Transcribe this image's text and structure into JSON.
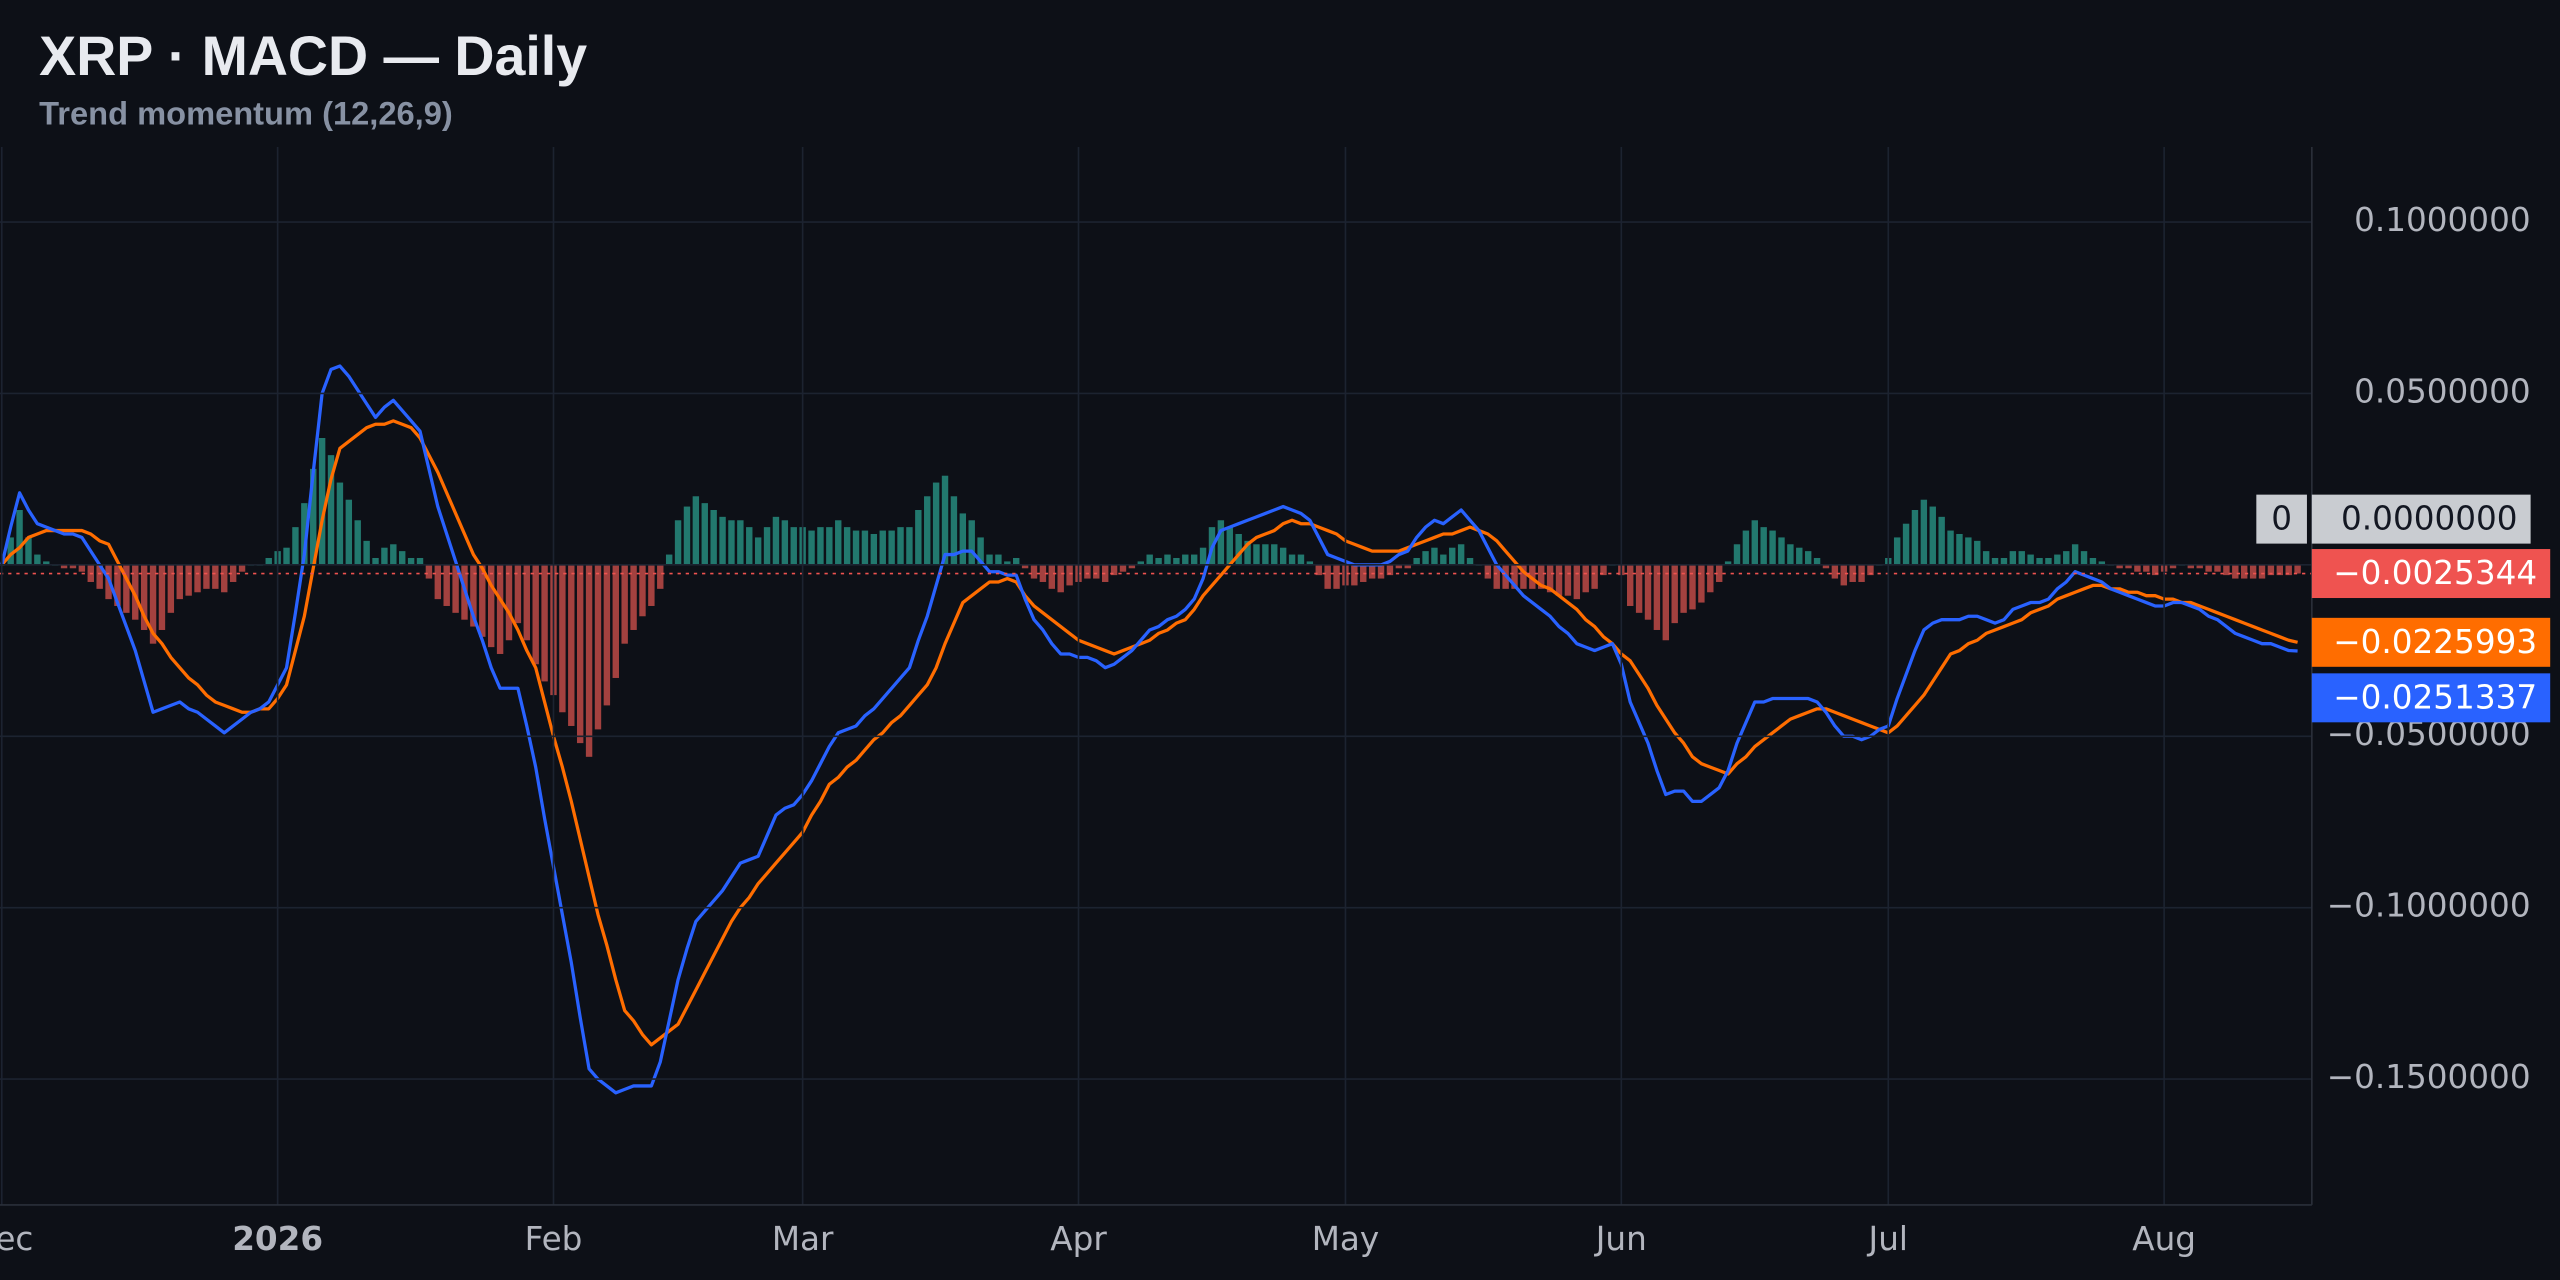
{
  "chart_data": {
    "type": "line",
    "title": "XRP · MACD — Daily",
    "subtitle": "Trend momentum (12,26,9)",
    "xlim": [
      -0.2,
      259.6
    ],
    "xticks": [
      {
        "value": 0,
        "label": "Dec"
      },
      {
        "value": 31,
        "label": "2026"
      },
      {
        "value": 62,
        "label": "Feb"
      },
      {
        "value": 90,
        "label": "Mar"
      },
      {
        "value": 121,
        "label": "Apr"
      },
      {
        "value": 151,
        "label": "May"
      },
      {
        "value": 182,
        "label": "Jun"
      },
      {
        "value": 212,
        "label": "Jul"
      },
      {
        "value": 243,
        "label": "Aug"
      }
    ],
    "ylim": [
      -0.1867,
      0.1219
    ],
    "yticks": [
      {
        "value": 0.1,
        "label": "0.1000000"
      },
      {
        "value": 0.05,
        "label": "0.0500000"
      },
      {
        "value": 0,
        "label": "0.0000000"
      },
      {
        "value": -0.05,
        "label": "−0.0500000"
      },
      {
        "value": -0.1,
        "label": "−0.1000000"
      },
      {
        "value": -0.15,
        "label": "−0.1500000"
      }
    ],
    "grid": true,
    "hlines": [
      {
        "value": 0,
        "label": "0"
      }
    ],
    "series": [
      {
        "type": "histogram",
        "positive_color": "#22786e",
        "negative_color": "#a3413f",
        "label_color": "#ef5350",
        "last_value_label": "−0.0025344",
        "values": [
          0,
          0.008,
          0.016,
          0.008,
          0.003,
          0.001,
          0,
          -0.001,
          -0.001,
          -0.002,
          -0.005,
          -0.007,
          -0.01,
          -0.012,
          -0.014,
          -0.016,
          -0.019,
          -0.023,
          -0.019,
          -0.014,
          -0.01,
          -0.009,
          -0.008,
          -0.007,
          -0.007,
          -0.008,
          -0.005,
          -0.002,
          0,
          0,
          0.002,
          0.004,
          0.005,
          0.011,
          0.018,
          0.028,
          0.037,
          0.032,
          0.024,
          0.019,
          0.013,
          0.007,
          0.002,
          0.005,
          0.006,
          0.004,
          0.002,
          0.002,
          -0.004,
          -0.01,
          -0.012,
          -0.014,
          -0.016,
          -0.018,
          -0.021,
          -0.024,
          -0.026,
          -0.022,
          -0.017,
          -0.022,
          -0.029,
          -0.034,
          -0.038,
          -0.043,
          -0.047,
          -0.052,
          -0.056,
          -0.048,
          -0.041,
          -0.033,
          -0.023,
          -0.019,
          -0.015,
          -0.012,
          -0.007,
          0.003,
          0.013,
          0.017,
          0.02,
          0.018,
          0.016,
          0.014,
          0.013,
          0.013,
          0.011,
          0.008,
          0.011,
          0.014,
          0.013,
          0.011,
          0.011,
          0.01,
          0.011,
          0.011,
          0.013,
          0.011,
          0.01,
          0.01,
          0.009,
          0.01,
          0.01,
          0.011,
          0.011,
          0.016,
          0.02,
          0.024,
          0.026,
          0.02,
          0.015,
          0.013,
          0.008,
          0.003,
          0.003,
          0.001,
          0.002,
          -0.001,
          -0.004,
          -0.005,
          -0.007,
          -0.008,
          -0.006,
          -0.005,
          -0.004,
          -0.004,
          -0.005,
          -0.003,
          -0.002,
          -0.001,
          0.001,
          0.003,
          0.002,
          0.003,
          0.002,
          0.003,
          0.003,
          0.005,
          0.011,
          0.013,
          0.011,
          0.009,
          0.007,
          0.006,
          0.006,
          0.006,
          0.005,
          0.003,
          0.003,
          0.001,
          -0.003,
          -0.007,
          -0.007,
          -0.006,
          -0.006,
          -0.005,
          -0.004,
          -0.004,
          -0.003,
          -0.001,
          -0.001,
          0.002,
          0.004,
          0.005,
          0.003,
          0.005,
          0.006,
          0.002,
          0,
          -0.004,
          -0.007,
          -0.007,
          -0.007,
          -0.007,
          -0.007,
          -0.007,
          -0.008,
          -0.009,
          -0.009,
          -0.01,
          -0.008,
          -0.007,
          -0.003,
          0,
          -0.003,
          -0.012,
          -0.014,
          -0.016,
          -0.019,
          -0.022,
          -0.017,
          -0.014,
          -0.013,
          -0.011,
          -0.008,
          -0.005,
          0.001,
          0.006,
          0.01,
          0.013,
          0.011,
          0.01,
          0.008,
          0.006,
          0.005,
          0.004,
          0.002,
          -0.001,
          -0.004,
          -0.006,
          -0.005,
          -0.005,
          -0.003,
          0,
          0.002,
          0.008,
          0.012,
          0.016,
          0.019,
          0.017,
          0.014,
          0.01,
          0.009,
          0.008,
          0.007,
          0.004,
          0.002,
          0.002,
          0.004,
          0.004,
          0.003,
          0.002,
          0.002,
          0.003,
          0.004,
          0.006,
          0.004,
          0.002,
          0.001,
          0,
          -0.001,
          -0.001,
          -0.002,
          -0.002,
          -0.003,
          -0.002,
          -0.001,
          0,
          -0.001,
          -0.001,
          -0.002,
          -0.002,
          -0.003,
          -0.004,
          -0.004,
          -0.004,
          -0.004,
          -0.003,
          -0.003,
          -0.003,
          -0.0025344
        ]
      },
      {
        "type": "line",
        "color": "#ff6d00",
        "last_value_label": "−0.0225993",
        "values": [
          0,
          0.003,
          0.005,
          0.008,
          0.009,
          0.01,
          0.01,
          0.01,
          0.01,
          0.01,
          0.009,
          0.007,
          0.006,
          0.001,
          -0.004,
          -0.009,
          -0.015,
          -0.02,
          -0.023,
          -0.027,
          -0.03,
          -0.033,
          -0.035,
          -0.038,
          -0.04,
          -0.041,
          -0.042,
          -0.043,
          -0.043,
          -0.042,
          -0.042,
          -0.039,
          -0.035,
          -0.025,
          -0.015,
          -0.001,
          0.013,
          0.025,
          0.034,
          0.036,
          0.038,
          0.04,
          0.041,
          0.041,
          0.042,
          0.041,
          0.04,
          0.037,
          0.032,
          0.027,
          0.021,
          0.015,
          0.009,
          0.003,
          -0.001,
          -0.006,
          -0.01,
          -0.014,
          -0.019,
          -0.025,
          -0.03,
          -0.04,
          -0.05,
          -0.059,
          -0.069,
          -0.08,
          -0.091,
          -0.102,
          -0.111,
          -0.121,
          -0.13,
          -0.133,
          -0.137,
          -0.14,
          -0.138,
          -0.136,
          -0.134,
          -0.129,
          -0.124,
          -0.119,
          -0.114,
          -0.109,
          -0.104,
          -0.1,
          -0.097,
          -0.093,
          -0.09,
          -0.087,
          -0.084,
          -0.081,
          -0.078,
          -0.073,
          -0.069,
          -0.064,
          -0.062,
          -0.059,
          -0.057,
          -0.054,
          -0.051,
          -0.049,
          -0.046,
          -0.044,
          -0.041,
          -0.038,
          -0.035,
          -0.03,
          -0.023,
          -0.017,
          -0.011,
          -0.009,
          -0.007,
          -0.005,
          -0.005,
          -0.004,
          -0.005,
          -0.009,
          -0.012,
          -0.014,
          -0.016,
          -0.018,
          -0.02,
          -0.022,
          -0.023,
          -0.024,
          -0.025,
          -0.026,
          -0.025,
          -0.024,
          -0.023,
          -0.022,
          -0.02,
          -0.019,
          -0.017,
          -0.016,
          -0.013,
          -0.009,
          -0.006,
          -0.003,
          0,
          0.003,
          0.006,
          0.008,
          0.009,
          0.01,
          0.012,
          0.013,
          0.012,
          0.012,
          0.011,
          0.01,
          0.009,
          0.007,
          0.006,
          0.005,
          0.004,
          0.004,
          0.004,
          0.004,
          0.005,
          0.006,
          0.007,
          0.008,
          0.009,
          0.009,
          0.01,
          0.011,
          0.01,
          0.009,
          0.007,
          0.004,
          0.001,
          -0.002,
          -0.004,
          -0.006,
          -0.007,
          -0.009,
          -0.011,
          -0.013,
          -0.016,
          -0.018,
          -0.021,
          -0.023,
          -0.026,
          -0.028,
          -0.032,
          -0.036,
          -0.041,
          -0.045,
          -0.049,
          -0.052,
          -0.056,
          -0.058,
          -0.059,
          -0.06,
          -0.061,
          -0.058,
          -0.056,
          -0.053,
          -0.051,
          -0.049,
          -0.047,
          -0.045,
          -0.044,
          -0.043,
          -0.042,
          -0.042,
          -0.043,
          -0.044,
          -0.045,
          -0.046,
          -0.047,
          -0.048,
          -0.049,
          -0.047,
          -0.044,
          -0.041,
          -0.038,
          -0.034,
          -0.03,
          -0.026,
          -0.025,
          -0.023,
          -0.022,
          -0.02,
          -0.019,
          -0.018,
          -0.017,
          -0.016,
          -0.014,
          -0.013,
          -0.012,
          -0.01,
          -0.009,
          -0.008,
          -0.007,
          -0.006,
          -0.006,
          -0.007,
          -0.007,
          -0.008,
          -0.008,
          -0.009,
          -0.009,
          -0.01,
          -0.01,
          -0.011,
          -0.011,
          -0.012,
          -0.013,
          -0.014,
          -0.015,
          -0.016,
          -0.017,
          -0.018,
          -0.019,
          -0.02,
          -0.021,
          -0.022,
          -0.0225993
        ]
      },
      {
        "type": "line",
        "color": "#2962ff",
        "last_value_label": "−0.0251337",
        "values": [
          0,
          0.011,
          0.021,
          0.016,
          0.012,
          0.011,
          0.01,
          0.009,
          0.009,
          0.008,
          0.004,
          0,
          -0.004,
          -0.011,
          -0.018,
          -0.025,
          -0.034,
          -0.043,
          -0.042,
          -0.041,
          -0.04,
          -0.042,
          -0.043,
          -0.045,
          -0.047,
          -0.049,
          -0.047,
          -0.045,
          -0.043,
          -0.042,
          -0.04,
          -0.035,
          -0.03,
          -0.014,
          0.003,
          0.027,
          0.05,
          0.057,
          0.058,
          0.055,
          0.051,
          0.047,
          0.043,
          0.046,
          0.048,
          0.045,
          0.042,
          0.039,
          0.028,
          0.017,
          0.009,
          0.001,
          -0.007,
          -0.015,
          -0.022,
          -0.03,
          -0.036,
          -0.036,
          -0.036,
          -0.047,
          -0.059,
          -0.074,
          -0.088,
          -0.102,
          -0.116,
          -0.132,
          -0.147,
          -0.15,
          -0.152,
          -0.154,
          -0.153,
          -0.152,
          -0.152,
          -0.152,
          -0.145,
          -0.133,
          -0.121,
          -0.112,
          -0.104,
          -0.101,
          -0.098,
          -0.095,
          -0.091,
          -0.087,
          -0.086,
          -0.085,
          -0.079,
          -0.073,
          -0.071,
          -0.07,
          -0.067,
          -0.063,
          -0.058,
          -0.053,
          -0.049,
          -0.048,
          -0.047,
          -0.044,
          -0.042,
          -0.039,
          -0.036,
          -0.033,
          -0.03,
          -0.022,
          -0.015,
          -0.006,
          0.003,
          0.003,
          0.004,
          0.004,
          0.001,
          -0.002,
          -0.002,
          -0.003,
          -0.003,
          -0.01,
          -0.016,
          -0.019,
          -0.023,
          -0.026,
          -0.026,
          -0.027,
          -0.027,
          -0.028,
          -0.03,
          -0.029,
          -0.027,
          -0.025,
          -0.022,
          -0.019,
          -0.018,
          -0.016,
          -0.015,
          -0.013,
          -0.01,
          -0.004,
          0.005,
          0.01,
          0.011,
          0.012,
          0.013,
          0.014,
          0.015,
          0.016,
          0.017,
          0.016,
          0.015,
          0.013,
          0.008,
          0.003,
          0.002,
          0.001,
          0,
          0,
          0,
          0,
          0.001,
          0.003,
          0.004,
          0.008,
          0.011,
          0.013,
          0.012,
          0.014,
          0.016,
          0.013,
          0.01,
          0.005,
          0,
          -0.003,
          -0.006,
          -0.009,
          -0.011,
          -0.013,
          -0.015,
          -0.018,
          -0.02,
          -0.023,
          -0.024,
          -0.025,
          -0.024,
          -0.023,
          -0.029,
          -0.04,
          -0.046,
          -0.052,
          -0.06,
          -0.067,
          -0.066,
          -0.066,
          -0.069,
          -0.069,
          -0.067,
          -0.065,
          -0.06,
          -0.052,
          -0.046,
          -0.04,
          -0.04,
          -0.039,
          -0.039,
          -0.039,
          -0.039,
          -0.039,
          -0.04,
          -0.043,
          -0.047,
          -0.05,
          -0.05,
          -0.051,
          -0.05,
          -0.048,
          -0.047,
          -0.039,
          -0.032,
          -0.025,
          -0.019,
          -0.017,
          -0.016,
          -0.016,
          -0.016,
          -0.015,
          -0.015,
          -0.016,
          -0.017,
          -0.016,
          -0.013,
          -0.012,
          -0.011,
          -0.011,
          -0.01,
          -0.007,
          -0.005,
          -0.002,
          -0.003,
          -0.004,
          -0.005,
          -0.007,
          -0.008,
          -0.009,
          -0.01,
          -0.011,
          -0.012,
          -0.012,
          -0.011,
          -0.011,
          -0.012,
          -0.013,
          -0.015,
          -0.016,
          -0.018,
          -0.02,
          -0.021,
          -0.022,
          -0.023,
          -0.023,
          -0.024,
          -0.025,
          -0.0251337
        ]
      }
    ]
  }
}
